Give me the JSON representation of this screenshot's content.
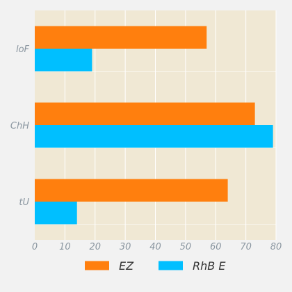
{
  "chart_data": {
    "type": "bar",
    "orientation": "horizontal",
    "title": "",
    "xlabel": "",
    "ylabel": "",
    "categories": [
      "loF",
      "ChH",
      "tU"
    ],
    "series": [
      {
        "name": "EZ",
        "values": [
          57,
          73,
          64
        ],
        "color": "#ff7f0e"
      },
      {
        "name": "RhB E",
        "values": [
          19,
          79,
          14
        ],
        "color": "#00bfff"
      }
    ],
    "xlim": [
      0,
      80
    ],
    "xticks": [
      0,
      10,
      20,
      30,
      40,
      50,
      60,
      70,
      80
    ],
    "grid": true,
    "legend_position": "bottom-center",
    "colors": {
      "background": "#f2f2f2",
      "plot_background": "#f0e8d4",
      "grid": "#ffffff",
      "text": "#8a96a0"
    }
  }
}
